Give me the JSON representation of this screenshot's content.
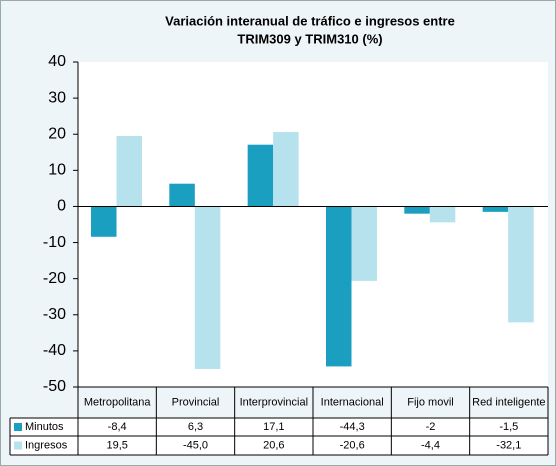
{
  "chart_data": {
    "type": "bar",
    "title": [
      "Variación interanual de tráfico e ingresos entre",
      "TRIM309 y TRIM310 (%)"
    ],
    "categories": [
      "Metropolitana",
      "Provincial",
      "Interprovincial",
      "Internacional",
      "Fijo movil",
      "Red inteligente"
    ],
    "series": [
      {
        "name": "Minutos",
        "color": "#1a9fc0",
        "values": [
          -8.4,
          6.3,
          17.1,
          -44.3,
          -2,
          -1.5
        ],
        "value_labels": [
          "-8,4",
          "6,3",
          "17,1",
          "-44,3",
          "-2",
          "-1,5"
        ]
      },
      {
        "name": "Ingresos",
        "color": "#b5e2ec",
        "values": [
          19.5,
          -45.0,
          20.6,
          -20.6,
          -4.4,
          -32.1
        ],
        "value_labels": [
          "19,5",
          "-45,0",
          "20,6",
          "-20,6",
          "-4,4",
          "-32,1"
        ]
      }
    ],
    "ylim": [
      -50,
      40
    ],
    "yticks": [
      40,
      30,
      20,
      10,
      0,
      -10,
      -20,
      -30,
      -40,
      -50
    ],
    "grid": false
  }
}
